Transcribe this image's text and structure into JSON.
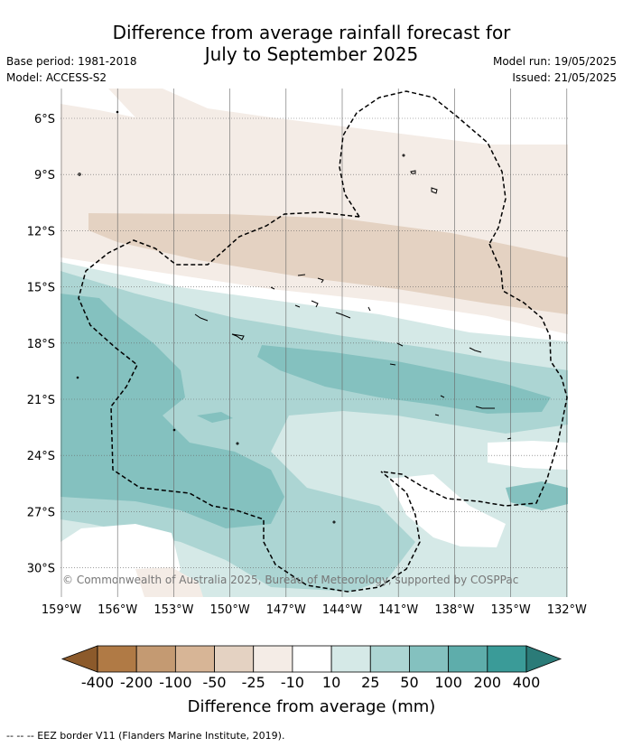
{
  "header": {
    "title_line1": "Difference from average rainfall forecast for",
    "title_line2": "July to September 2025",
    "base_period": "Base period: 1981-2018",
    "model": "Model: ACCESS-S2",
    "model_run": "Model run: 19/05/2025",
    "issued": "Issued: 21/05/2025"
  },
  "map": {
    "lat_labels": [
      "6°S",
      "9°S",
      "12°S",
      "15°S",
      "18°S",
      "21°S",
      "24°S",
      "27°S",
      "30°S"
    ],
    "lon_labels": [
      "159°W",
      "156°W",
      "153°W",
      "150°W",
      "147°W",
      "144°W",
      "141°W",
      "138°W",
      "135°W",
      "132°W"
    ],
    "copyright": "© Commonwealth of Australia 2025, Bureau of Meteorology, supported by COSPPac"
  },
  "colorbar": {
    "labels": [
      "-400",
      "-200",
      "-100",
      "-50",
      "-25",
      "-10",
      "10",
      "25",
      "50",
      "100",
      "200",
      "400"
    ],
    "colors": [
      "#8c5a2b",
      "#b07a45",
      "#c49a72",
      "#d7b596",
      "#e4d2c2",
      "#f4ece6",
      "#ffffff",
      "#d5e9e7",
      "#acd5d3",
      "#84c1bf",
      "#5eadab",
      "#3a9b98",
      "#2b7b78"
    ],
    "title": "Difference from average (mm)"
  },
  "footnote": "-- -- -- EEZ border V11 (Flanders Marine Institute, 2019)."
}
